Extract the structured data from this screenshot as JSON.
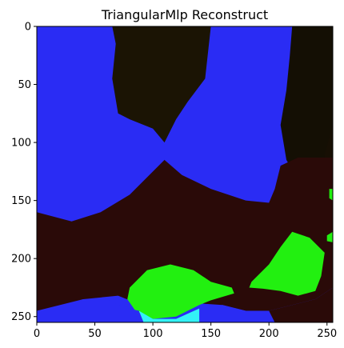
{
  "chart_data": {
    "type": "heatmap",
    "title": "TriangularMlp Reconstruct",
    "xlabel": "",
    "ylabel": "",
    "xlim": [
      0,
      255
    ],
    "ylim": [
      255,
      0
    ],
    "x_ticks": [
      0,
      50,
      100,
      150,
      200,
      250
    ],
    "y_ticks": [
      0,
      50,
      100,
      150,
      200,
      250
    ],
    "grid": false,
    "colors": {
      "blue": "#2a2cf4",
      "dark": "#1a1204",
      "dark_red": "#2a0a08",
      "green": "#22f010",
      "cyan": "#33f2f6"
    },
    "regions": [
      {
        "name": "blue",
        "color": "#2a2cf4",
        "polygon": [
          [
            0,
            0
          ],
          [
            255,
            0
          ],
          [
            255,
            255
          ],
          [
            0,
            255
          ]
        ]
      },
      {
        "name": "dark-top",
        "color": "#1b1404",
        "polygon": [
          [
            65,
            0
          ],
          [
            150,
            0
          ],
          [
            145,
            45
          ],
          [
            130,
            65
          ],
          [
            120,
            80
          ],
          [
            110,
            100
          ],
          [
            100,
            88
          ],
          [
            80,
            80
          ],
          [
            70,
            75
          ],
          [
            65,
            45
          ],
          [
            68,
            15
          ]
        ]
      },
      {
        "name": "dark-right",
        "color": "#140f04",
        "polygon": [
          [
            220,
            0
          ],
          [
            255,
            0
          ],
          [
            255,
            150
          ],
          [
            230,
            140
          ],
          [
            215,
            115
          ],
          [
            210,
            85
          ],
          [
            215,
            55
          ],
          [
            218,
            25
          ]
        ]
      },
      {
        "name": "dark-right-2",
        "color": "#170f04",
        "polygon": [
          [
            255,
            85
          ],
          [
            255,
            160
          ],
          [
            245,
            155
          ],
          [
            248,
            110
          ]
        ]
      },
      {
        "name": "dark-middle",
        "color": "#2a0a08",
        "polygon": [
          [
            0,
            160
          ],
          [
            30,
            168
          ],
          [
            55,
            160
          ],
          [
            80,
            145
          ],
          [
            100,
            125
          ],
          [
            110,
            115
          ],
          [
            125,
            128
          ],
          [
            150,
            140
          ],
          [
            180,
            150
          ],
          [
            200,
            152
          ],
          [
            205,
            140
          ],
          [
            210,
            120
          ],
          [
            225,
            113
          ],
          [
            255,
            113
          ],
          [
            255,
            225
          ],
          [
            240,
            235
          ],
          [
            220,
            240
          ],
          [
            200,
            245
          ],
          [
            180,
            245
          ],
          [
            160,
            240
          ],
          [
            130,
            238
          ],
          [
            110,
            240
          ],
          [
            90,
            240
          ],
          [
            70,
            232
          ],
          [
            40,
            235
          ],
          [
            20,
            242
          ],
          [
            0,
            245
          ]
        ]
      },
      {
        "name": "green-left",
        "color": "#22f010",
        "polygon": [
          [
            80,
            225
          ],
          [
            95,
            210
          ],
          [
            115,
            205
          ],
          [
            135,
            210
          ],
          [
            150,
            220
          ],
          [
            168,
            225
          ],
          [
            170,
            230
          ],
          [
            150,
            236
          ],
          [
            140,
            240
          ],
          [
            120,
            250
          ],
          [
            100,
            252
          ],
          [
            85,
            245
          ],
          [
            78,
            235
          ]
        ]
      },
      {
        "name": "green-right",
        "color": "#22f010",
        "polygon": [
          [
            185,
            220
          ],
          [
            200,
            205
          ],
          [
            210,
            190
          ],
          [
            220,
            177
          ],
          [
            235,
            182
          ],
          [
            248,
            195
          ],
          [
            245,
            215
          ],
          [
            240,
            228
          ],
          [
            225,
            232
          ],
          [
            210,
            228
          ],
          [
            195,
            226
          ],
          [
            183,
            225
          ]
        ]
      },
      {
        "name": "green-edge-top",
        "color": "#22f010",
        "polygon": [
          [
            252,
            140
          ],
          [
            255,
            140
          ],
          [
            255,
            150
          ],
          [
            252,
            148
          ]
        ]
      },
      {
        "name": "green-edge-bottom",
        "color": "#22f010",
        "polygon": [
          [
            250,
            180
          ],
          [
            255,
            177
          ],
          [
            255,
            186
          ],
          [
            250,
            185
          ]
        ]
      },
      {
        "name": "cyan",
        "color": "#33f2f6",
        "polygon": [
          [
            88,
            245
          ],
          [
            100,
            252
          ],
          [
            120,
            252
          ],
          [
            140,
            243
          ],
          [
            145,
            255
          ],
          [
            92,
            255
          ]
        ]
      },
      {
        "name": "blue-bottom-left",
        "color": "#2a2cf4",
        "polygon": [
          [
            0,
            245
          ],
          [
            20,
            240
          ],
          [
            40,
            235
          ],
          [
            60,
            235
          ],
          [
            75,
            242
          ],
          [
            88,
            245
          ],
          [
            90,
            255
          ],
          [
            0,
            255
          ]
        ]
      },
      {
        "name": "blue-bottom-right",
        "color": "#2a2cf4",
        "polygon": [
          [
            140,
            243
          ],
          [
            160,
            240
          ],
          [
            180,
            245
          ],
          [
            200,
            245
          ],
          [
            205,
            255
          ],
          [
            140,
            255
          ]
        ]
      },
      {
        "name": "dark-bottom-right",
        "color": "#2a0a08",
        "polygon": [
          [
            200,
            245
          ],
          [
            220,
            240
          ],
          [
            240,
            235
          ],
          [
            255,
            225
          ],
          [
            255,
            255
          ],
          [
            205,
            255
          ]
        ]
      }
    ]
  }
}
